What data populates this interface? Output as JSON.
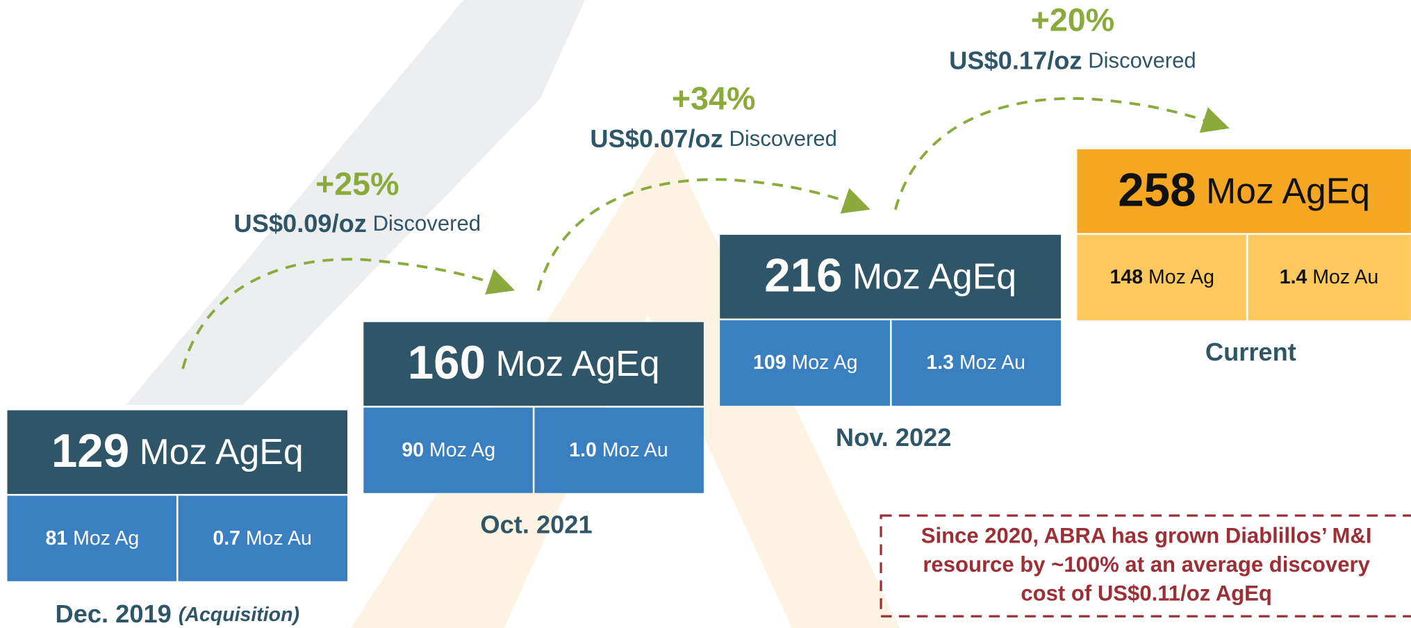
{
  "stages": [
    {
      "total": "129",
      "total_unit": "Moz AgEq",
      "ag": "81",
      "ag_unit": "Moz Ag",
      "au": "0.7",
      "au_unit": "Moz Au",
      "label": "Dec. 2019",
      "note": "(Acquisition)"
    },
    {
      "total": "160",
      "total_unit": "Moz AgEq",
      "ag": "90",
      "ag_unit": "Moz Ag",
      "au": "1.0",
      "au_unit": "Moz Au",
      "label": "Oct. 2021"
    },
    {
      "total": "216",
      "total_unit": "Moz AgEq",
      "ag": "109",
      "ag_unit": "Moz Ag",
      "au": "1.3",
      "au_unit": "Moz Au",
      "label": "Nov. 2022"
    },
    {
      "total": "258",
      "total_unit": "Moz AgEq",
      "ag": "148",
      "ag_unit": "Moz Ag",
      "au": "1.4",
      "au_unit": "Moz Au",
      "label": "Current"
    }
  ],
  "arrows": [
    {
      "change": "+25%",
      "cost": "US$0.09/oz",
      "word": "Discovered"
    },
    {
      "change": "+34%",
      "cost": "US$0.07/oz",
      "word": "Discovered"
    },
    {
      "change": "+20%",
      "cost": "US$0.17/oz",
      "word": "Discovered"
    }
  ],
  "summary": {
    "lines": [
      "Since 2020, ABRA has grown Diablillos’ M&I",
      "resource by ~100% at an average discovery",
      "cost of US$0.11/oz AgEq"
    ]
  }
}
